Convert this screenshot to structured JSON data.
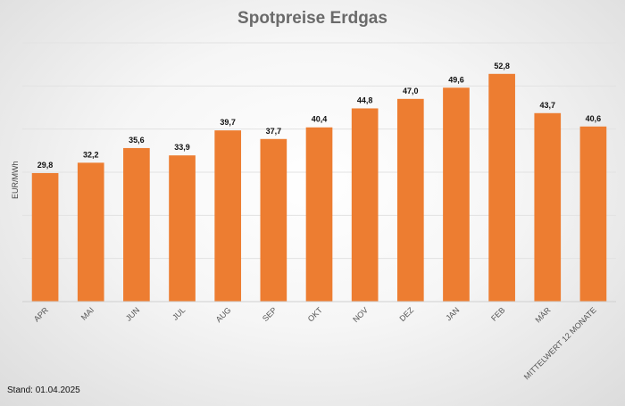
{
  "chart_data": {
    "type": "bar",
    "title": "Spotpreise Erdgas",
    "ylabel": "EUR/MWh",
    "xlabel": "",
    "categories": [
      "APR",
      "MAI",
      "JUN",
      "JUL",
      "AUG",
      "SEP",
      "OKT",
      "NOV",
      "DEZ",
      "JAN",
      "FEB",
      "MÄR",
      "MITTELWERT 12 MONATE"
    ],
    "values": [
      29.8,
      32.2,
      35.6,
      33.9,
      39.7,
      37.7,
      40.4,
      44.8,
      47.0,
      49.6,
      52.8,
      43.7,
      40.6
    ],
    "value_labels": [
      "29,8",
      "32,2",
      "35,6",
      "33,9",
      "39,7",
      "37,7",
      "40,4",
      "44,8",
      "47,0",
      "49,6",
      "52,8",
      "43,7",
      "40,6"
    ],
    "ylim": [
      0,
      60
    ],
    "grid": true,
    "legend": "none",
    "bar_color": "#ED7D31"
  },
  "footer": {
    "note": "Stand: 01.04.2025"
  }
}
